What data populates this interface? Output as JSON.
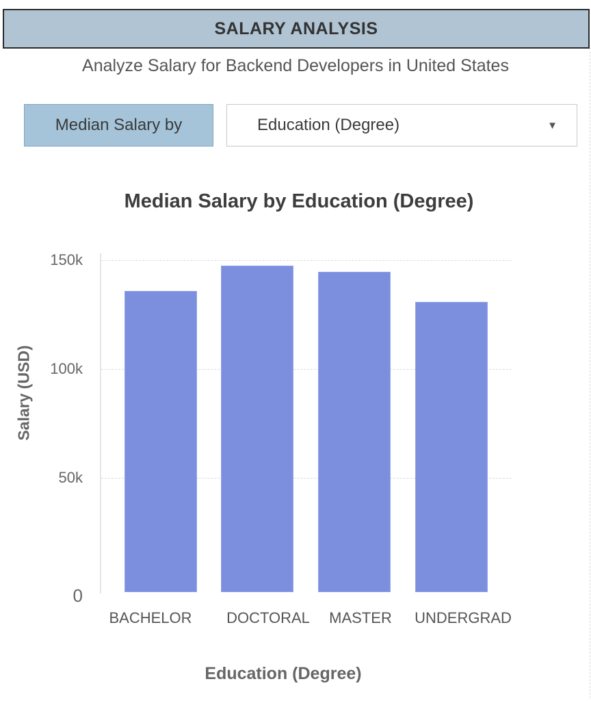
{
  "header": {
    "title": "SALARY ANALYSIS"
  },
  "subtitle": "Analyze Salary for Backend Developers in United States",
  "controls": {
    "label": "Median Salary by",
    "dropdown": {
      "selected": "Education (Degree)",
      "arrow_icon": "triangle-down-icon"
    }
  },
  "colors": {
    "header_bg": "#b0c4d4",
    "label_bg": "#a5c4d9",
    "bar": "#7b8fde"
  },
  "chart_data": {
    "type": "bar",
    "title": "Median Salary by Education (Degree)",
    "xlabel": "Education (Degree)",
    "ylabel": "Salary (USD)",
    "categories": [
      "BACHELOR",
      "DOCTORAL",
      "MASTER",
      "UNDERGRAD"
    ],
    "values": [
      136000,
      147500,
      144700,
      130800
    ],
    "ylim": [
      0,
      155000
    ],
    "yticks": [
      0,
      50000,
      100000,
      150000
    ],
    "ytick_labels": [
      "0",
      "50k",
      "100k",
      "150k"
    ],
    "grid": true,
    "legend": null
  }
}
